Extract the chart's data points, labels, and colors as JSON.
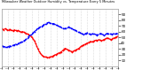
{
  "title": "Milwaukee Weather Outdoor Humidity vs. Temperature Every 5 Minutes",
  "red_color": "#ff0000",
  "blue_color": "#0000ff",
  "bg_color": "#ffffff",
  "plot_bg": "#ffffff",
  "grid_color": "#bbbbbb",
  "n_points": 100,
  "yticks_right": [
    10,
    20,
    30,
    40,
    50,
    60,
    70,
    80,
    90
  ],
  "marker_size": 1.2,
  "line_width": 0.8,
  "red_y": [
    65,
    64,
    63,
    65,
    64,
    63,
    62,
    64,
    63,
    62,
    61,
    63,
    62,
    61,
    62,
    61,
    60,
    59,
    60,
    59,
    58,
    57,
    56,
    55,
    53,
    52,
    50,
    47,
    44,
    40,
    35,
    30,
    26,
    23,
    20,
    18,
    17,
    16,
    16,
    15,
    15,
    16,
    16,
    17,
    18,
    19,
    20,
    21,
    22,
    23,
    24,
    25,
    27,
    29,
    31,
    30,
    29,
    28,
    27,
    26,
    25,
    26,
    27,
    28,
    29,
    30,
    31,
    33,
    35,
    36,
    37,
    38,
    39,
    40,
    41,
    42,
    43,
    42,
    43,
    44,
    45,
    44,
    45,
    46,
    45,
    44,
    45,
    46,
    47,
    48,
    49,
    48,
    47,
    46,
    47,
    48,
    49,
    50,
    51,
    52
  ],
  "blue_y": [
    35,
    35,
    34,
    34,
    33,
    33,
    34,
    35,
    35,
    36,
    36,
    37,
    38,
    38,
    39,
    40,
    41,
    42,
    43,
    44,
    45,
    47,
    49,
    51,
    53,
    55,
    57,
    58,
    60,
    62,
    64,
    65,
    67,
    68,
    69,
    70,
    72,
    73,
    74,
    75,
    76,
    75,
    75,
    74,
    74,
    73,
    72,
    71,
    70,
    69,
    68,
    67,
    66,
    65,
    65,
    66,
    67,
    68,
    67,
    66,
    65,
    64,
    63,
    62,
    61,
    60,
    59,
    58,
    57,
    56,
    55,
    56,
    57,
    58,
    57,
    56,
    55,
    56,
    57,
    56,
    55,
    54,
    55,
    56,
    57,
    56,
    55,
    54,
    55,
    56,
    57,
    56,
    57,
    56,
    55,
    56,
    57,
    56,
    57,
    56
  ]
}
